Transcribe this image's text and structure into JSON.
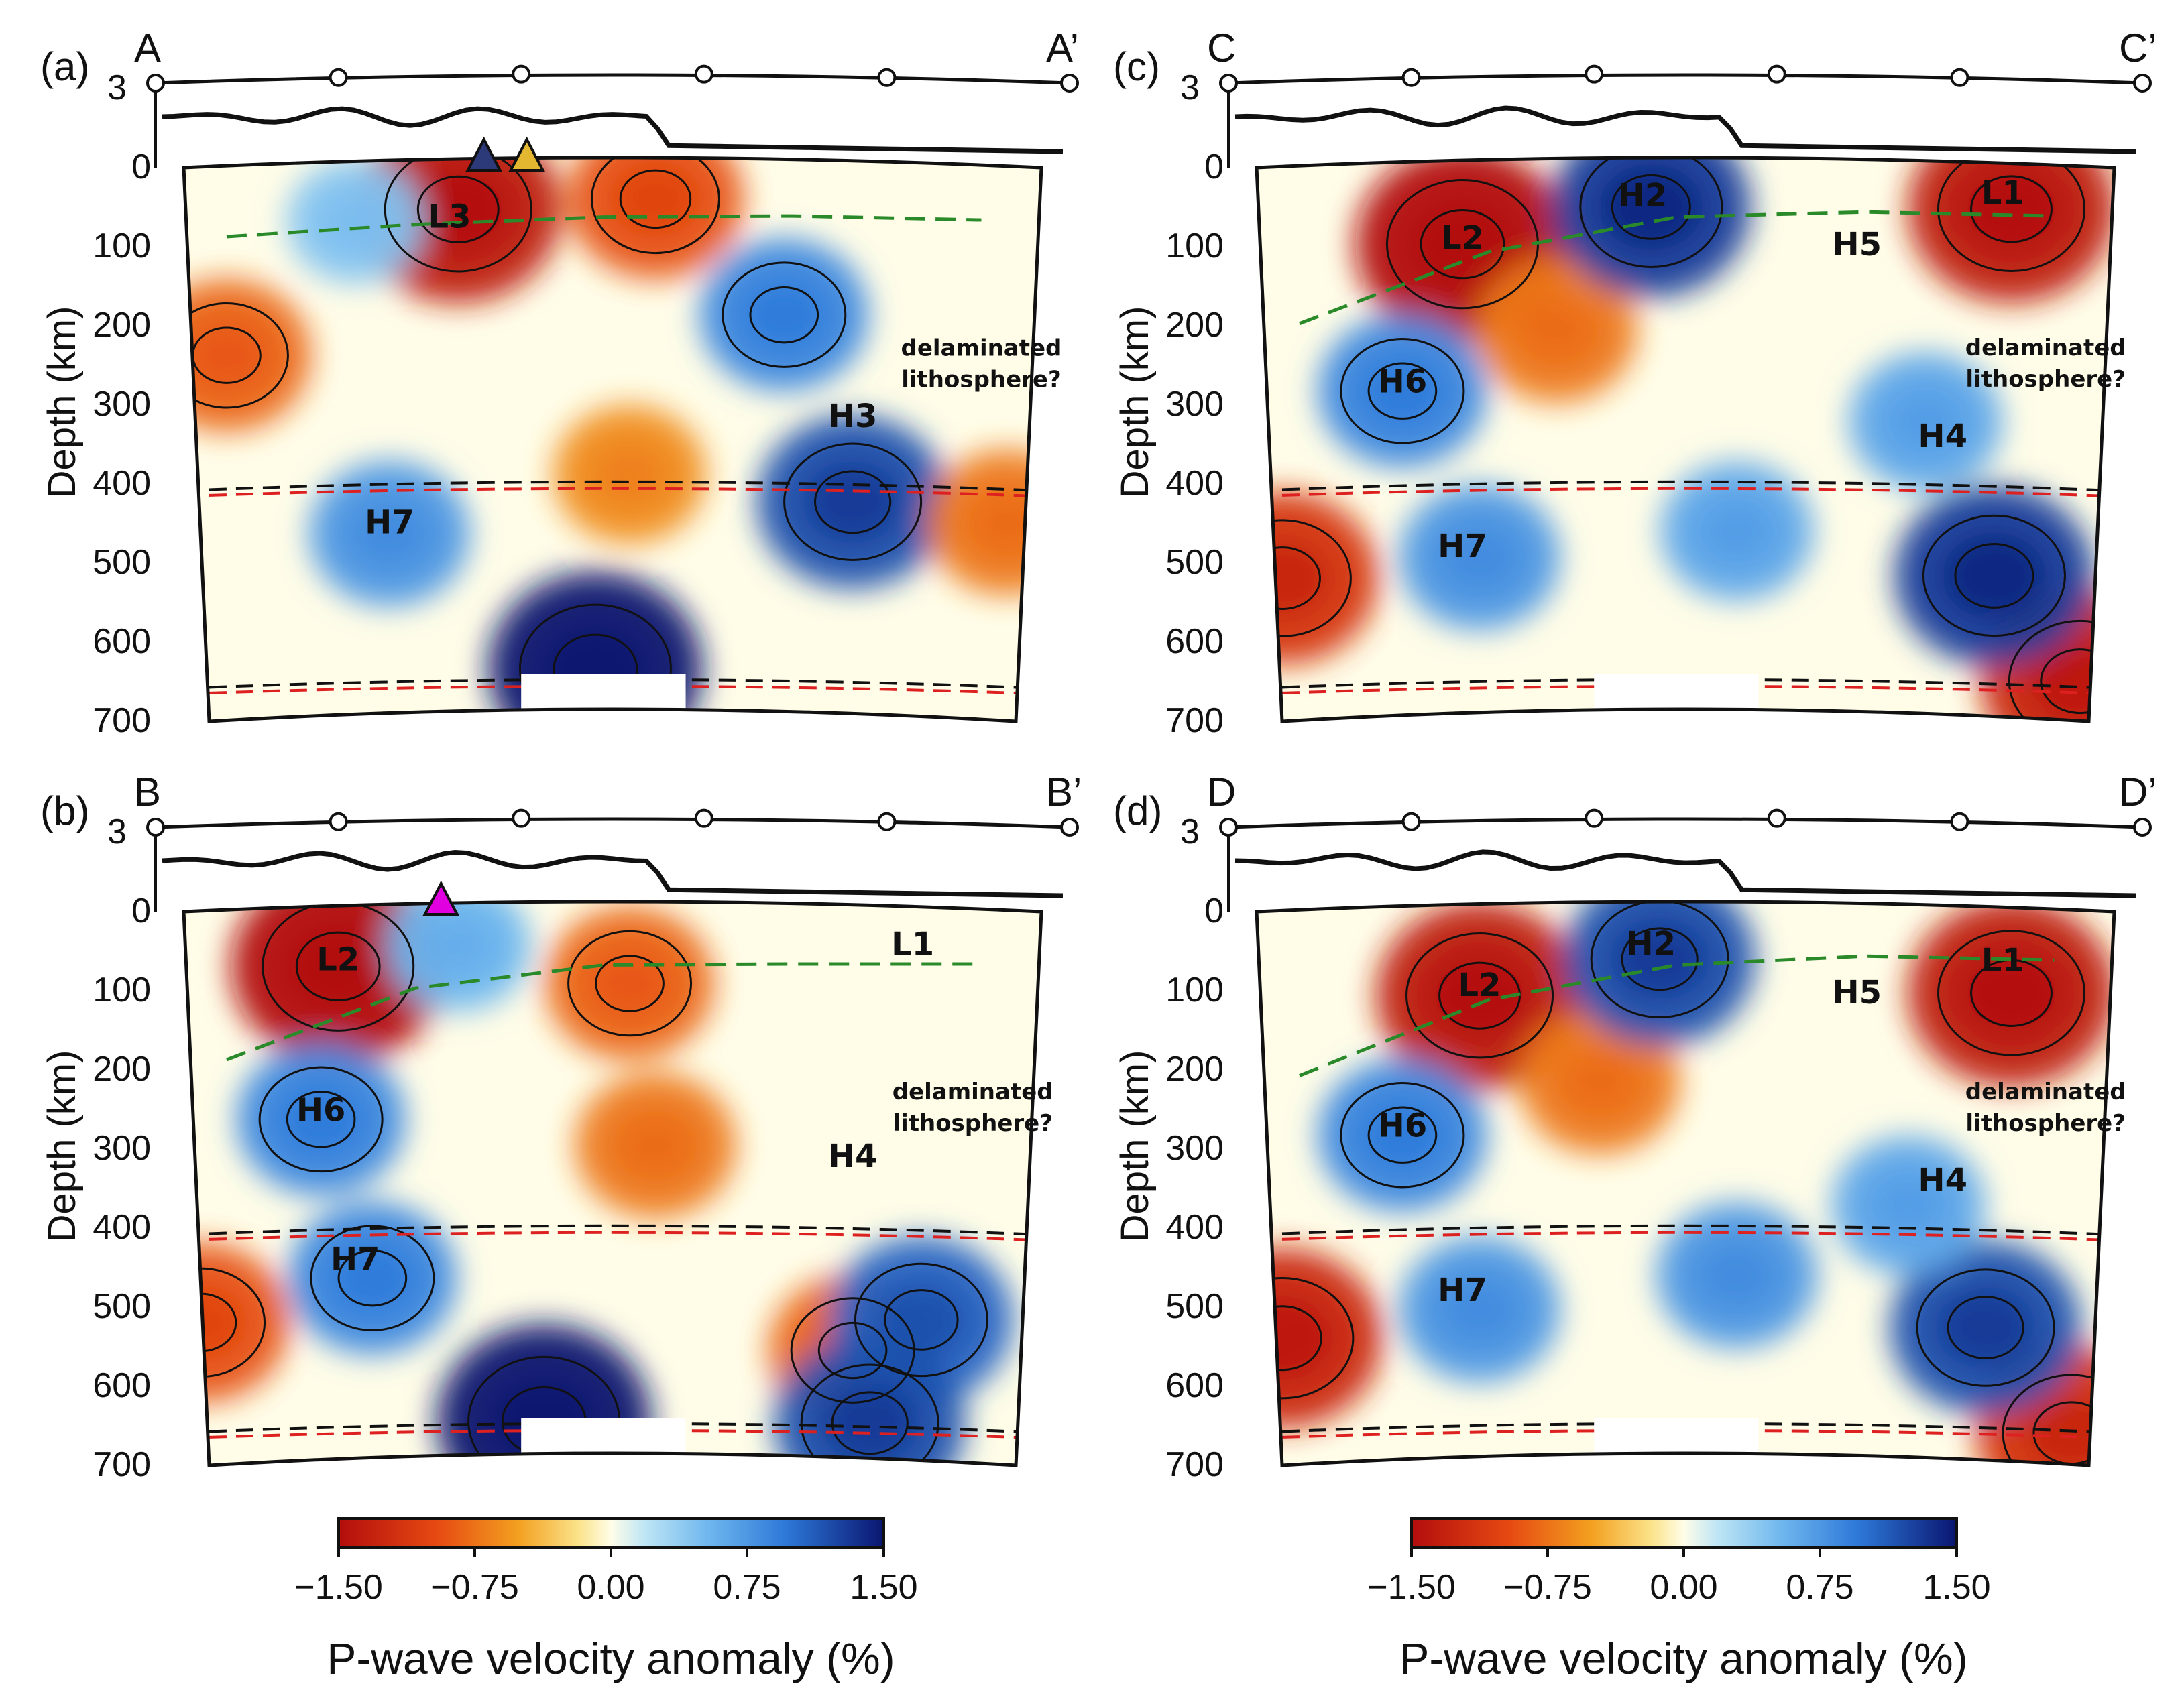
{
  "colors": {
    "scale_low": "#b30d0d",
    "scale_neg": "#f3a020",
    "scale_zero": "#fffde8",
    "scale_pos": "#3d8ee8",
    "scale_high": "#0a1670",
    "slab_410": "#dd2020",
    "ref_410": "#111111",
    "lab_line": "#2a8a2a",
    "volcano_dark": "#2c3a7a",
    "volcano_gold": "#e3b830",
    "volcano_magenta": "#e000e0"
  },
  "chart_data": [
    {
      "type": "heatmap",
      "panel": "(a)",
      "start_label": "A",
      "end_label": "A’",
      "elevation_axis_tick": "3",
      "y_axis_label": "Depth (km)",
      "y_ticks": [
        "0",
        "100",
        "200",
        "300",
        "400",
        "500",
        "600",
        "700"
      ],
      "ylim_km": [
        0,
        700
      ],
      "profile_markers": 6,
      "discontinuities_km": [
        410,
        660
      ],
      "lab_depth_km": [
        90,
        85,
        80,
        75,
        70
      ],
      "labels": [
        {
          "text": "L3",
          "distance": 0.31,
          "depth": 85
        },
        {
          "text": "H3",
          "distance": 0.78,
          "depth": 335
        },
        {
          "text": "H7",
          "distance": 0.24,
          "depth": 470
        },
        {
          "text": "delaminated",
          "distance": 0.93,
          "depth": 240
        },
        {
          "text": "lithosphere?",
          "distance": 0.93,
          "depth": 280
        }
      ],
      "anomalies": [
        {
          "distance": 0.32,
          "depth": 70,
          "value": -1.4
        },
        {
          "distance": 0.55,
          "depth": 60,
          "value": -1.0
        },
        {
          "distance": 0.05,
          "depth": 240,
          "value": -0.9
        },
        {
          "distance": 0.52,
          "depth": 400,
          "value": -0.7
        },
        {
          "distance": 0.7,
          "depth": 200,
          "value": 0.9
        },
        {
          "distance": 0.78,
          "depth": 430,
          "value": 1.2
        },
        {
          "distance": 0.24,
          "depth": 470,
          "value": 0.8
        },
        {
          "distance": 0.48,
          "depth": 640,
          "value": 1.5
        },
        {
          "distance": 0.2,
          "depth": 80,
          "value": 0.5
        },
        {
          "distance": 0.96,
          "depth": 450,
          "value": -0.8
        }
      ],
      "volcanoes": [
        {
          "distance": 0.35,
          "color": "volcano_dark"
        },
        {
          "distance": 0.4,
          "color": "volcano_gold"
        }
      ]
    },
    {
      "type": "heatmap",
      "panel": "(b)",
      "start_label": "B",
      "end_label": "B’",
      "elevation_axis_tick": "3",
      "y_axis_label": "Depth (km)",
      "y_ticks": [
        "0",
        "100",
        "200",
        "300",
        "400",
        "500",
        "600",
        "700"
      ],
      "ylim_km": [
        0,
        700
      ],
      "profile_markers": 6,
      "discontinuities_km": [
        410,
        660
      ],
      "lab_depth_km": [
        190,
        110,
        85,
        80,
        70
      ],
      "labels": [
        {
          "text": "L2",
          "distance": 0.18,
          "depth": 80
        },
        {
          "text": "L1",
          "distance": 0.85,
          "depth": 60
        },
        {
          "text": "H6",
          "distance": 0.16,
          "depth": 270
        },
        {
          "text": "H4",
          "distance": 0.78,
          "depth": 330
        },
        {
          "text": "H7",
          "distance": 0.2,
          "depth": 460
        },
        {
          "text": "delaminated",
          "distance": 0.92,
          "depth": 240
        },
        {
          "text": "lithosphere?",
          "distance": 0.92,
          "depth": 280
        }
      ],
      "anomalies": [
        {
          "distance": 0.18,
          "depth": 80,
          "value": -1.5
        },
        {
          "distance": 0.52,
          "depth": 110,
          "value": -0.9
        },
        {
          "distance": 0.55,
          "depth": 310,
          "value": -0.8
        },
        {
          "distance": 0.02,
          "depth": 520,
          "value": -1.0
        },
        {
          "distance": 0.78,
          "depth": 560,
          "value": -0.9
        },
        {
          "distance": 0.16,
          "depth": 270,
          "value": 0.9
        },
        {
          "distance": 0.22,
          "depth": 470,
          "value": 0.9
        },
        {
          "distance": 0.86,
          "depth": 520,
          "value": 1.1
        },
        {
          "distance": 0.42,
          "depth": 650,
          "value": 1.5
        },
        {
          "distance": 0.8,
          "depth": 650,
          "value": 1.2
        },
        {
          "distance": 0.32,
          "depth": 60,
          "value": 0.6
        }
      ],
      "volcanoes": [
        {
          "distance": 0.3,
          "color": "volcano_magenta"
        }
      ]
    },
    {
      "type": "heatmap",
      "panel": "(c)",
      "start_label": "C",
      "end_label": "C’",
      "elevation_axis_tick": "3",
      "y_axis_label": "Depth (km)",
      "y_ticks": [
        "0",
        "100",
        "200",
        "300",
        "400",
        "500",
        "600",
        "700"
      ],
      "ylim_km": [
        0,
        700
      ],
      "profile_markers": 6,
      "discontinuities_km": [
        410,
        660
      ],
      "lab_depth_km": [
        200,
        120,
        80,
        70,
        65
      ],
      "labels": [
        {
          "text": "L2",
          "distance": 0.24,
          "depth": 110
        },
        {
          "text": "H2",
          "distance": 0.45,
          "depth": 60
        },
        {
          "text": "L1",
          "distance": 0.87,
          "depth": 50
        },
        {
          "text": "H5",
          "distance": 0.7,
          "depth": 120
        },
        {
          "text": "H6",
          "distance": 0.17,
          "depth": 290
        },
        {
          "text": "H4",
          "distance": 0.8,
          "depth": 360
        },
        {
          "text": "H7",
          "distance": 0.24,
          "depth": 500
        },
        {
          "text": "delaminated",
          "distance": 0.92,
          "depth": 240
        },
        {
          "text": "lithosphere?",
          "distance": 0.92,
          "depth": 280
        }
      ],
      "anomalies": [
        {
          "distance": 0.24,
          "depth": 110,
          "value": -1.5
        },
        {
          "distance": 0.88,
          "depth": 60,
          "value": -1.4
        },
        {
          "distance": 0.35,
          "depth": 220,
          "value": -0.8
        },
        {
          "distance": 0.03,
          "depth": 520,
          "value": -1.2
        },
        {
          "distance": 0.96,
          "depth": 650,
          "value": -1.3
        },
        {
          "distance": 0.46,
          "depth": 70,
          "value": 1.3
        },
        {
          "distance": 0.17,
          "depth": 290,
          "value": 0.9
        },
        {
          "distance": 0.86,
          "depth": 520,
          "value": 1.3
        },
        {
          "distance": 0.26,
          "depth": 500,
          "value": 0.8
        },
        {
          "distance": 0.56,
          "depth": 470,
          "value": 0.7
        },
        {
          "distance": 0.78,
          "depth": 330,
          "value": 0.7
        }
      ],
      "volcanoes": []
    },
    {
      "type": "heatmap",
      "panel": "(d)",
      "start_label": "D",
      "end_label": "D’",
      "elevation_axis_tick": "3",
      "y_axis_label": "Depth (km)",
      "y_ticks": [
        "0",
        "100",
        "200",
        "300",
        "400",
        "500",
        "600",
        "700"
      ],
      "ylim_km": [
        0,
        700
      ],
      "profile_markers": 6,
      "discontinuities_km": [
        410,
        660
      ],
      "lab_depth_km": [
        210,
        125,
        85,
        70,
        65
      ],
      "labels": [
        {
          "text": "L2",
          "distance": 0.26,
          "depth": 115
        },
        {
          "text": "H2",
          "distance": 0.46,
          "depth": 65
        },
        {
          "text": "L1",
          "distance": 0.87,
          "depth": 80
        },
        {
          "text": "H5",
          "distance": 0.7,
          "depth": 125
        },
        {
          "text": "H6",
          "distance": 0.17,
          "depth": 290
        },
        {
          "text": "H4",
          "distance": 0.8,
          "depth": 360
        },
        {
          "text": "H7",
          "distance": 0.24,
          "depth": 500
        },
        {
          "text": "delaminated",
          "distance": 0.92,
          "depth": 240
        },
        {
          "text": "lithosphere?",
          "distance": 0.92,
          "depth": 280
        }
      ],
      "anomalies": [
        {
          "distance": 0.26,
          "depth": 120,
          "value": -1.4
        },
        {
          "distance": 0.88,
          "depth": 110,
          "value": -1.4
        },
        {
          "distance": 0.4,
          "depth": 230,
          "value": -0.8
        },
        {
          "distance": 0.03,
          "depth": 540,
          "value": -1.3
        },
        {
          "distance": 0.95,
          "depth": 660,
          "value": -1.2
        },
        {
          "distance": 0.47,
          "depth": 80,
          "value": 1.2
        },
        {
          "distance": 0.17,
          "depth": 290,
          "value": 0.9
        },
        {
          "distance": 0.85,
          "depth": 530,
          "value": 1.2
        },
        {
          "distance": 0.26,
          "depth": 510,
          "value": 0.8
        },
        {
          "distance": 0.56,
          "depth": 470,
          "value": 0.8
        },
        {
          "distance": 0.76,
          "depth": 380,
          "value": 0.7
        }
      ],
      "volcanoes": []
    }
  ],
  "colorbars": [
    {
      "ticks": [
        "−1.50",
        "−0.75",
        "0.00",
        "0.75",
        "1.50"
      ],
      "range": [
        -1.5,
        1.5
      ],
      "title": "P-wave velocity anomaly (%)"
    },
    {
      "ticks": [
        "−1.50",
        "−0.75",
        "0.00",
        "0.75",
        "1.50"
      ],
      "range": [
        -1.5,
        1.5
      ],
      "title": "P-wave velocity anomaly (%)"
    }
  ]
}
